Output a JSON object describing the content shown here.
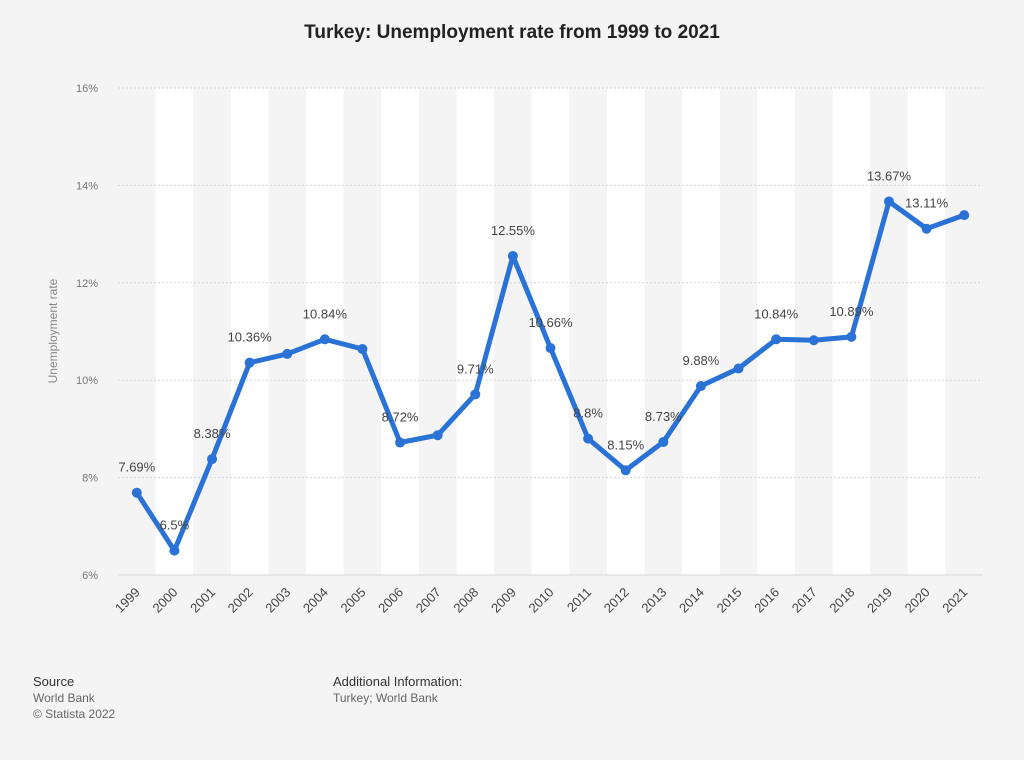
{
  "chart_data": {
    "type": "line",
    "title": "Turkey: Unemployment rate from 1999 to 2021",
    "xlabel": "",
    "ylabel": "Unemployment rate",
    "ylim": [
      6,
      16
    ],
    "yticks": [
      6,
      8,
      10,
      12,
      14,
      16
    ],
    "ytick_labels": [
      "6%",
      "8%",
      "10%",
      "12%",
      "14%",
      "16%"
    ],
    "grid": true,
    "categories": [
      "1999",
      "2000",
      "2001",
      "2002",
      "2003",
      "2004",
      "2005",
      "2006",
      "2007",
      "2008",
      "2009",
      "2010",
      "2011",
      "2012",
      "2013",
      "2014",
      "2015",
      "2016",
      "2017",
      "2018",
      "2019",
      "2020",
      "2021"
    ],
    "series": [
      {
        "color": "#2a72d6",
        "values": [
          7.69,
          6.5,
          8.38,
          10.36,
          10.54,
          10.84,
          10.64,
          8.72,
          8.87,
          9.71,
          12.55,
          10.66,
          8.8,
          8.15,
          8.73,
          9.88,
          10.24,
          10.84,
          10.82,
          10.89,
          13.67,
          13.11,
          13.39
        ],
        "labels": [
          "7.69%",
          "6.5%",
          "8.38%",
          "10.36%",
          "",
          "10.84%",
          "",
          "8.72%",
          "",
          "9.71%",
          "12.55%",
          "10.66%",
          "8.8%",
          "8.15%",
          "8.73%",
          "9.88%",
          "",
          "10.84%",
          "",
          "10.89%",
          "13.67%",
          "13.11%",
          ""
        ]
      }
    ]
  },
  "footer": {
    "source_heading": "Source",
    "source_line1": "World Bank",
    "source_line2": "© Statista 2022",
    "info_heading": "Additional Information:",
    "info_line1": "Turkey; World Bank"
  }
}
